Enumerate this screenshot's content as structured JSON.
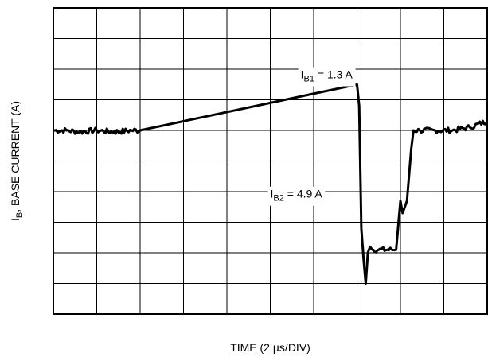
{
  "chart_data": {
    "type": "line",
    "title": "",
    "xlabel": "TIME (2 µs/DIV)",
    "ylabel": "I",
    "ylabel_sub": "B",
    "ylabel_rest": ", BASE CURRENT (A)",
    "grid": true,
    "x_divisions": 10,
    "y_divisions": 10,
    "xlim": [
      0,
      10
    ],
    "ylim": [
      0,
      10
    ],
    "series": [
      {
        "name": "",
        "color": "#000000",
        "x": [
          0,
          0.3,
          0.6,
          1.0,
          1.4,
          1.8,
          2.0,
          7.0,
          7.05,
          7.1,
          7.15,
          7.2,
          7.25,
          7.3,
          7.35,
          7.5,
          7.8,
          7.9,
          8.0,
          8.05,
          8.15,
          8.25,
          8.3,
          8.45,
          8.8,
          9.2,
          9.6,
          10.0
        ],
        "y": [
          6.0,
          6.0,
          5.95,
          6.0,
          5.95,
          6.0,
          6.0,
          7.5,
          6.8,
          2.8,
          1.8,
          1.0,
          2.0,
          2.2,
          2.1,
          2.1,
          2.1,
          2.1,
          3.7,
          3.3,
          3.7,
          5.4,
          6.0,
          6.0,
          6.0,
          6.0,
          6.1,
          6.3
        ]
      }
    ],
    "annotations": [
      {
        "label": "I",
        "sub": "B1",
        "text": " = 1.3 A",
        "x": 5.7,
        "y": 7.7
      },
      {
        "label": "I",
        "sub": "B2",
        "text": " = 4.9 A",
        "x": 5.0,
        "y": 3.8
      }
    ]
  }
}
